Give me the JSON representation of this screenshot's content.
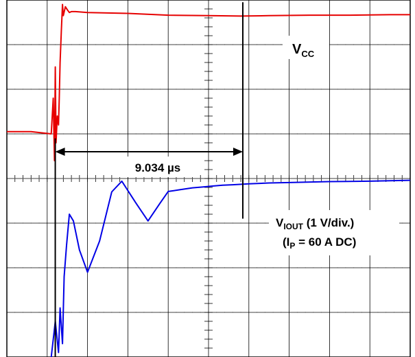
{
  "chart_data": {
    "type": "line",
    "title": "",
    "xlabel": "",
    "ylabel": "",
    "grid": true,
    "x_unit": "div",
    "y_unit": "div",
    "xlim": [
      0,
      10
    ],
    "ylim": [
      -4,
      4
    ],
    "series": [
      {
        "name": "VCC",
        "color": "#e60000",
        "x": [
          0,
          0.6,
          1.1,
          1.15,
          1.18,
          1.2,
          1.22,
          1.25,
          1.28,
          1.3,
          1.32,
          1.35,
          1.38,
          1.4,
          1.45,
          1.5,
          1.55,
          1.6,
          1.7,
          2.0,
          3.0,
          4.0,
          5.0,
          5.8,
          6.5,
          7.5,
          8.5,
          9.5,
          10
        ],
        "values": [
          1.05,
          1.05,
          1.0,
          1.8,
          0.4,
          2.5,
          0.8,
          1.4,
          1.2,
          1.8,
          2.6,
          3.3,
          3.9,
          3.65,
          3.85,
          3.78,
          3.72,
          3.74,
          3.74,
          3.72,
          3.7,
          3.66,
          3.65,
          3.64,
          3.65,
          3.66,
          3.66,
          3.67,
          3.67
        ]
      },
      {
        "name": "VIOUT",
        "color": "#0000e6",
        "x": [
          1.1,
          1.2,
          1.28,
          1.32,
          1.38,
          1.42,
          1.48,
          1.55,
          1.65,
          1.8,
          2.0,
          2.3,
          2.6,
          2.85,
          3.2,
          3.5,
          3.8,
          4.0,
          4.3,
          4.6,
          4.85,
          5.1,
          5.35,
          5.6,
          6.0,
          6.5,
          7.0,
          8.0,
          9.0,
          10
        ],
        "values": [
          -4.0,
          -3.2,
          -3.9,
          -2.9,
          -3.7,
          -2.2,
          -1.5,
          -0.8,
          -0.95,
          -1.6,
          -2.1,
          -1.4,
          -0.3,
          -0.06,
          -0.55,
          -0.95,
          -0.55,
          -0.29,
          -0.25,
          -0.21,
          -0.19,
          -0.17,
          -0.15,
          -0.14,
          -0.12,
          -0.1,
          -0.09,
          -0.07,
          -0.06,
          -0.04
        ]
      }
    ],
    "cursors": {
      "x1": 1.2,
      "x2": 5.85,
      "delta_label": "9.034 µs"
    },
    "annotations": {
      "vcc_label": "V",
      "vcc_sub": "CC",
      "viout_label_main": "V",
      "viout_label_sub": "IOUT",
      "viout_label_tail": " (1 V/div.)",
      "ip_open": "(I",
      "ip_sub": "P",
      "ip_tail": " = 60 A DC)"
    }
  }
}
